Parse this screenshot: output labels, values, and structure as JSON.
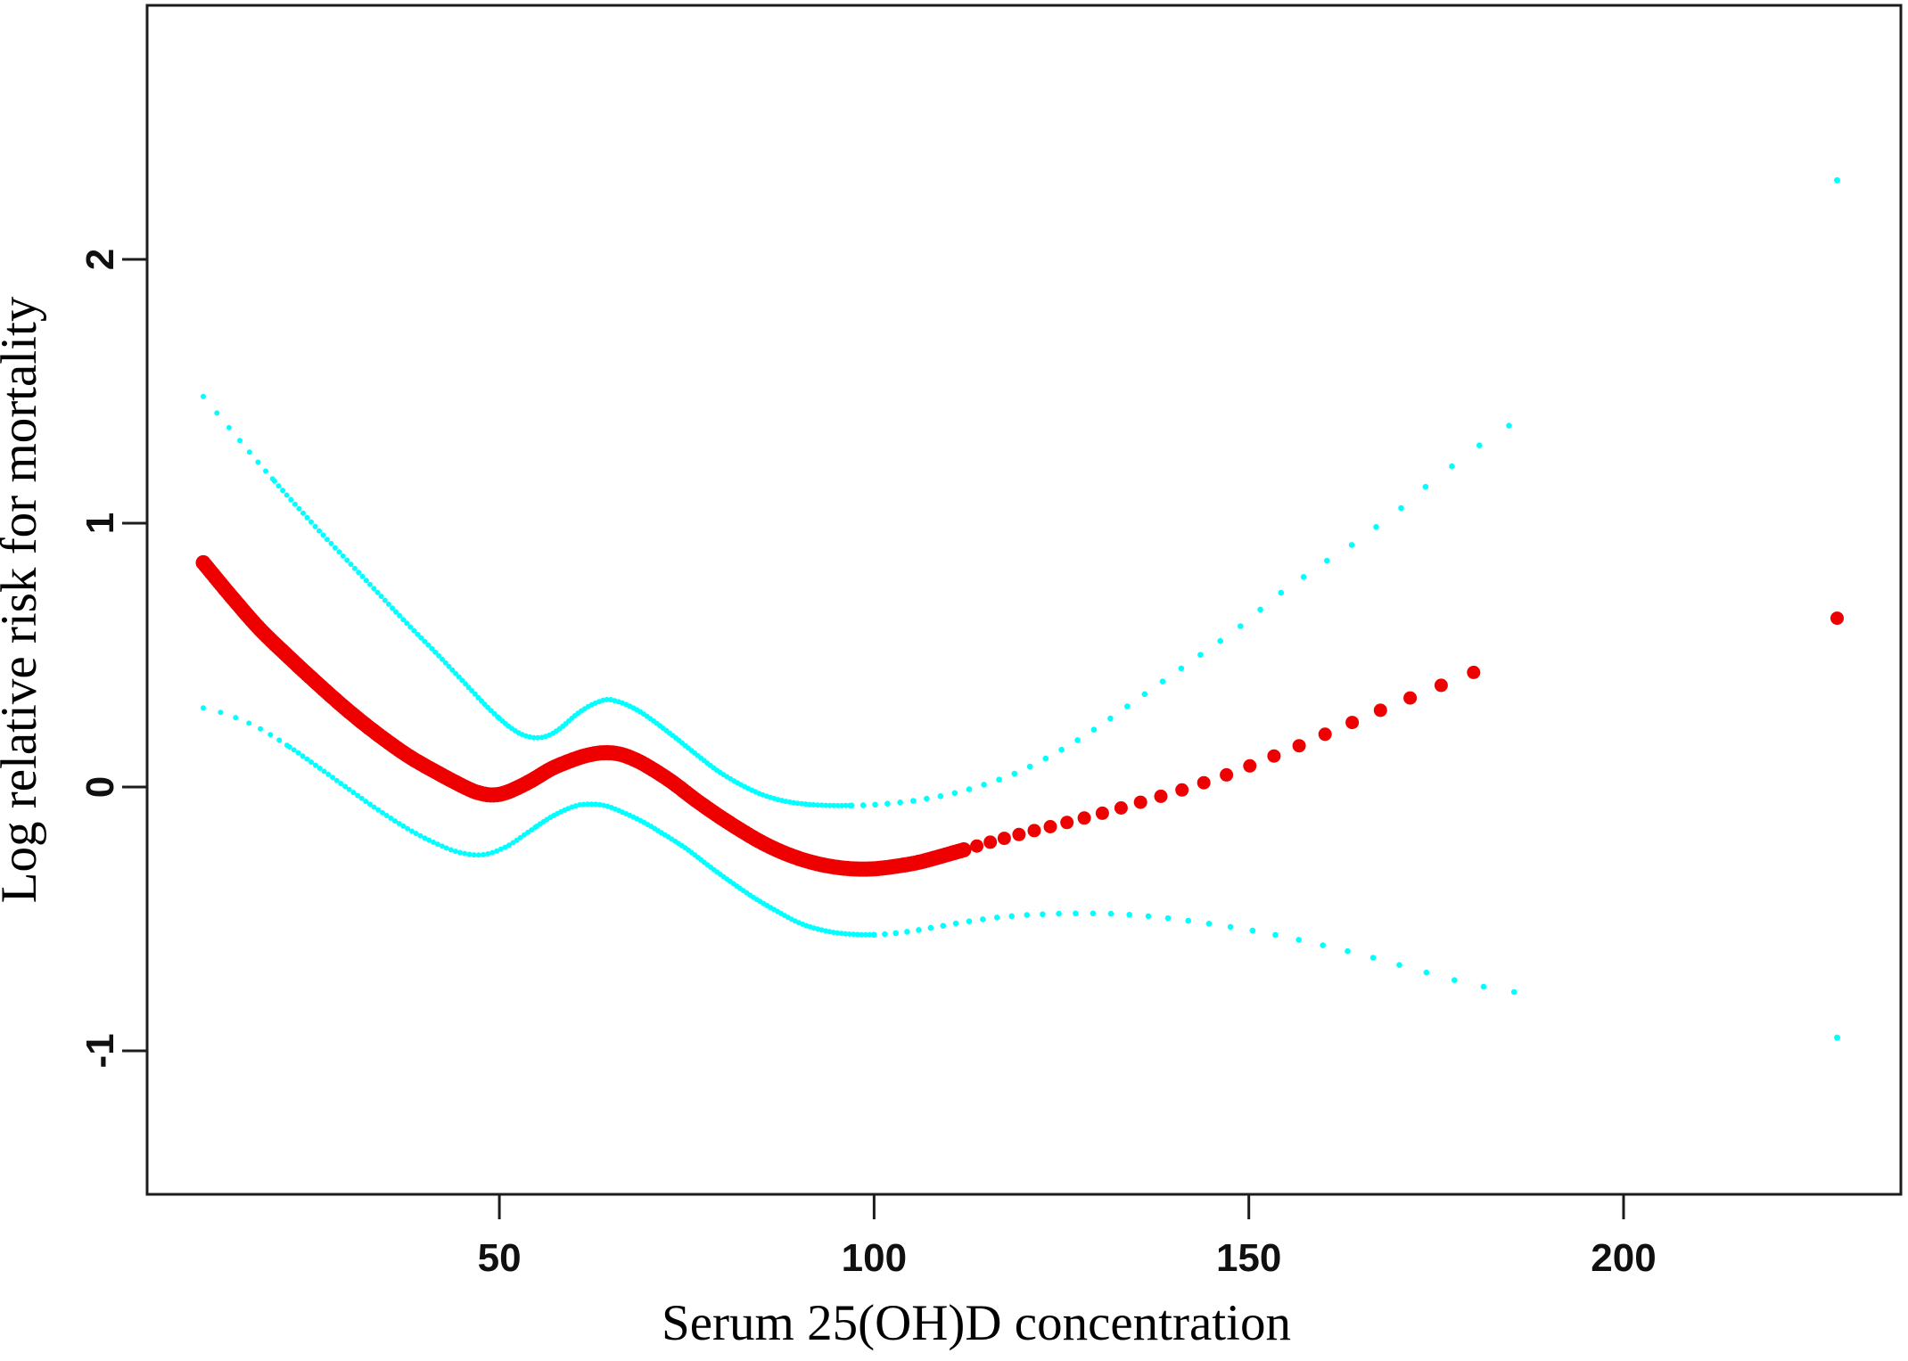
{
  "figure": {
    "background": "#ffffff",
    "frame_color": "#1c1c1c",
    "estimate_color": "#ee0000",
    "ci_color": "#00ffff"
  },
  "chart_data": {
    "type": "scatter",
    "title": "",
    "xlabel": "Serum 25(OH)D concentration",
    "ylabel": "Log relative risk for mortality",
    "xlim": [
      3,
      237
    ],
    "ylim": [
      -1.544,
      2.963
    ],
    "grid": false,
    "legend": null,
    "x_ticks": [
      {
        "v": 50,
        "label": "50"
      },
      {
        "v": 100,
        "label": "100"
      },
      {
        "v": 150,
        "label": "150"
      },
      {
        "v": 200,
        "label": "200"
      }
    ],
    "y_ticks": [
      {
        "v": 2,
        "label": "2"
      },
      {
        "v": 1,
        "label": "1"
      },
      {
        "v": 0,
        "label": "0"
      },
      {
        "v": -1,
        "label": "-1"
      }
    ],
    "series": [
      {
        "name": "upper-95ci",
        "color": "#00ffff",
        "marker": "dot",
        "anchors": [
          [
            10.5,
            1.48
          ],
          [
            14,
            1.36
          ],
          [
            18,
            1.225
          ],
          [
            22,
            1.095
          ],
          [
            26,
            0.97
          ],
          [
            30,
            0.85
          ],
          [
            34,
            0.73
          ],
          [
            38,
            0.61
          ],
          [
            42,
            0.495
          ],
          [
            45,
            0.405
          ],
          [
            48,
            0.315
          ],
          [
            50,
            0.26
          ],
          [
            52,
            0.215
          ],
          [
            54,
            0.19
          ],
          [
            56,
            0.19
          ],
          [
            58,
            0.22
          ],
          [
            61,
            0.29
          ],
          [
            64,
            0.33
          ],
          [
            66,
            0.322
          ],
          [
            68,
            0.298
          ],
          [
            70,
            0.262
          ],
          [
            73,
            0.198
          ],
          [
            76,
            0.13
          ],
          [
            79,
            0.064
          ],
          [
            82,
            0.012
          ],
          [
            85,
            -0.028
          ],
          [
            88,
            -0.053
          ],
          [
            91,
            -0.065
          ],
          [
            94,
            -0.07
          ],
          [
            97,
            -0.07
          ],
          [
            100,
            -0.067
          ],
          [
            103,
            -0.06
          ],
          [
            106,
            -0.049
          ],
          [
            109,
            -0.034
          ],
          [
            112,
            -0.014
          ],
          [
            115,
            0.012
          ],
          [
            118,
            0.042
          ],
          [
            121,
            0.08
          ],
          [
            124,
            0.125
          ],
          [
            127,
            0.175
          ],
          [
            130,
            0.23
          ],
          [
            133,
            0.29
          ],
          [
            136,
            0.35
          ],
          [
            139,
            0.41
          ],
          [
            142,
            0.47
          ],
          [
            145,
            0.53
          ],
          [
            148,
            0.59
          ],
          [
            151,
            0.66
          ],
          [
            154,
            0.73
          ],
          [
            157,
            0.79
          ],
          [
            160,
            0.85
          ],
          [
            163,
            0.903
          ],
          [
            166,
            0.965
          ],
          [
            170,
            1.05
          ],
          [
            174,
            1.148
          ],
          [
            178,
            1.235
          ],
          [
            182,
            1.32
          ],
          [
            187,
            1.41
          ]
        ],
        "isolated_points": [
          [
            228.5,
            2.3
          ]
        ],
        "isolated_r": 3.5,
        "segments": [
          {
            "from": 10.5,
            "to": 20,
            "g0": 24,
            "g1": 10,
            "r": 3
          },
          {
            "from": 20,
            "to": 50,
            "g0": 7,
            "g1": 5,
            "r": 3
          },
          {
            "from": 50,
            "to": 97,
            "g0": 4.5,
            "g1": 4.5,
            "r": 3
          },
          {
            "from": 97,
            "to": 187,
            "g0": 13,
            "g1": 42,
            "r": 3.3
          }
        ]
      },
      {
        "name": "lower-95ci",
        "color": "#00ffff",
        "marker": "dot",
        "anchors": [
          [
            10.5,
            0.3
          ],
          [
            14,
            0.272
          ],
          [
            18,
            0.222
          ],
          [
            22,
            0.152
          ],
          [
            26,
            0.072
          ],
          [
            30,
            -0.01
          ],
          [
            34,
            -0.09
          ],
          [
            38,
            -0.162
          ],
          [
            42,
            -0.22
          ],
          [
            45,
            -0.25
          ],
          [
            48,
            -0.256
          ],
          [
            51,
            -0.225
          ],
          [
            54,
            -0.168
          ],
          [
            57,
            -0.112
          ],
          [
            60,
            -0.073
          ],
          [
            62,
            -0.065
          ],
          [
            64,
            -0.07
          ],
          [
            66,
            -0.09
          ],
          [
            69,
            -0.13
          ],
          [
            72,
            -0.18
          ],
          [
            75,
            -0.235
          ],
          [
            78,
            -0.3
          ],
          [
            81,
            -0.362
          ],
          [
            84,
            -0.42
          ],
          [
            87,
            -0.47
          ],
          [
            90,
            -0.515
          ],
          [
            93,
            -0.542
          ],
          [
            96,
            -0.556
          ],
          [
            100,
            -0.56
          ],
          [
            104,
            -0.55
          ],
          [
            108,
            -0.532
          ],
          [
            112,
            -0.512
          ],
          [
            116,
            -0.496
          ],
          [
            120,
            -0.486
          ],
          [
            124,
            -0.481
          ],
          [
            128,
            -0.479
          ],
          [
            132,
            -0.481
          ],
          [
            136,
            -0.488
          ],
          [
            140,
            -0.5
          ],
          [
            144,
            -0.515
          ],
          [
            148,
            -0.532
          ],
          [
            152,
            -0.552
          ],
          [
            156,
            -0.575
          ],
          [
            160,
            -0.601
          ],
          [
            164,
            -0.628
          ],
          [
            168,
            -0.658
          ],
          [
            172,
            -0.69
          ],
          [
            176,
            -0.721
          ],
          [
            180,
            -0.75
          ],
          [
            186,
            -0.78
          ]
        ],
        "isolated_points": [
          [
            228.5,
            -0.95
          ]
        ],
        "isolated_r": 3.5,
        "segments": [
          {
            "from": 10.5,
            "to": 22,
            "g0": 20,
            "g1": 9,
            "r": 3
          },
          {
            "from": 22,
            "to": 55,
            "g0": 6,
            "g1": 5,
            "r": 3
          },
          {
            "from": 55,
            "to": 100,
            "g0": 4.5,
            "g1": 4.5,
            "r": 3
          },
          {
            "from": 100,
            "to": 186,
            "g0": 12,
            "g1": 36,
            "r": 3.3
          }
        ]
      },
      {
        "name": "pooled-estimate",
        "color": "#ee0000",
        "marker": "dot",
        "anchors": [
          [
            10.5,
            0.85
          ],
          [
            14,
            0.73
          ],
          [
            18,
            0.6
          ],
          [
            22,
            0.49
          ],
          [
            26,
            0.385
          ],
          [
            30,
            0.285
          ],
          [
            34,
            0.195
          ],
          [
            38,
            0.115
          ],
          [
            42,
            0.05
          ],
          [
            45,
            0.005
          ],
          [
            47,
            -0.02
          ],
          [
            49,
            -0.03
          ],
          [
            51,
            -0.02
          ],
          [
            54,
            0.02
          ],
          [
            57,
            0.07
          ],
          [
            60,
            0.105
          ],
          [
            62,
            0.122
          ],
          [
            64,
            0.13
          ],
          [
            66,
            0.125
          ],
          [
            68,
            0.105
          ],
          [
            70,
            0.075
          ],
          [
            73,
            0.02
          ],
          [
            76,
            -0.045
          ],
          [
            79,
            -0.105
          ],
          [
            82,
            -0.16
          ],
          [
            85,
            -0.21
          ],
          [
            88,
            -0.25
          ],
          [
            91,
            -0.28
          ],
          [
            94,
            -0.3
          ],
          [
            97,
            -0.31
          ],
          [
            100,
            -0.31
          ],
          [
            103,
            -0.3
          ],
          [
            106,
            -0.285
          ],
          [
            109,
            -0.262
          ],
          [
            112,
            -0.238
          ],
          [
            115,
            -0.213
          ],
          [
            118,
            -0.19
          ],
          [
            121,
            -0.168
          ],
          [
            124,
            -0.147
          ],
          [
            127,
            -0.125
          ],
          [
            130,
            -0.103
          ],
          [
            133,
            -0.079
          ],
          [
            136,
            -0.054
          ],
          [
            139,
            -0.029
          ],
          [
            142,
            -0.003
          ],
          [
            145,
            0.026
          ],
          [
            148,
            0.056
          ],
          [
            151,
            0.09
          ],
          [
            154,
            0.125
          ],
          [
            157,
            0.16
          ],
          [
            160,
            0.198
          ],
          [
            163,
            0.235
          ],
          [
            166,
            0.272
          ],
          [
            169,
            0.308
          ],
          [
            172,
            0.343
          ],
          [
            175,
            0.378
          ],
          [
            178,
            0.412
          ],
          [
            181,
            0.446
          ],
          [
            183,
            0.468
          ]
        ],
        "isolated_points": [
          [
            228.5,
            0.64
          ]
        ],
        "isolated_r": 7.5,
        "segments": [
          {
            "from": 10.5,
            "to": 112,
            "g0": 3.5,
            "g1": 3.5,
            "r": 8.5
          },
          {
            "from": 112,
            "to": 183,
            "g0": 15,
            "g1": 42,
            "r": 7.5
          }
        ]
      }
    ]
  }
}
